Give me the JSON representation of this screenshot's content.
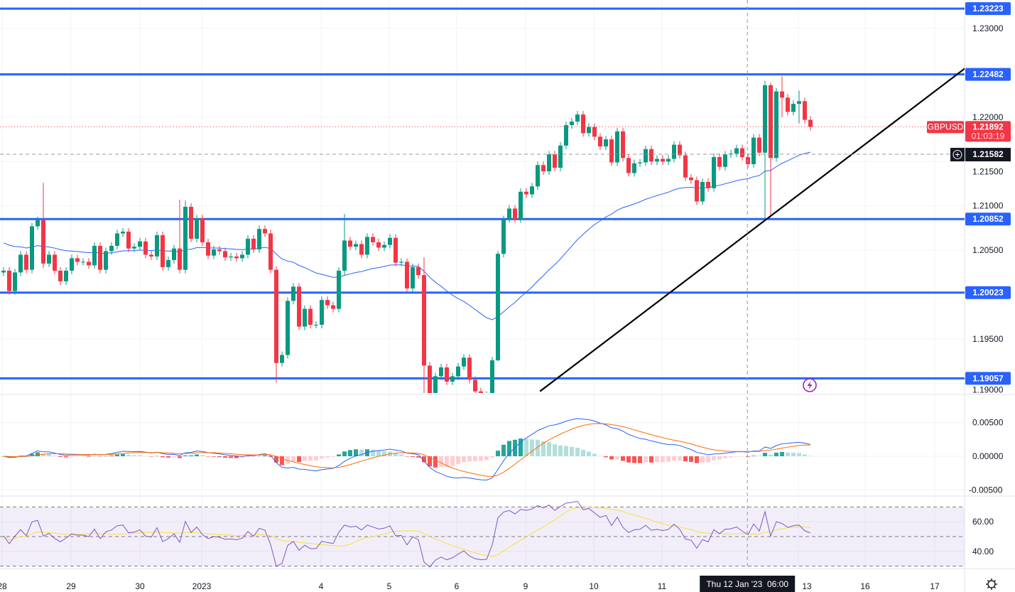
{
  "chart_data": {
    "type": "candlestick",
    "symbol": "GBPUSD",
    "interval_hint": "2h candles",
    "price_axis": {
      "min": 1.1889,
      "max": 1.233,
      "ticks": [
        "1.23000",
        "1.22000",
        "1.21500",
        "1.21000",
        "1.20500",
        "1.19500",
        "1.19000"
      ]
    },
    "time_axis": {
      "ticks": [
        "28",
        "29",
        "30",
        "2023",
        "4",
        "5",
        "6",
        "9",
        "10",
        "11",
        "13",
        "16",
        "17"
      ]
    },
    "crosshair": {
      "time_label": "Thu 12 Jan '23  06:00",
      "price_label": "1.21582",
      "price": 1.21582,
      "index": 130.9
    },
    "last_price": {
      "symbol_tag": "GBPUSD",
      "price_label": "1.21892",
      "price": 1.21892,
      "countdown": "01:03:19"
    },
    "horizontal_levels": [
      {
        "price": 1.23223,
        "label": "1.23223"
      },
      {
        "price": 1.22482,
        "label": "1.22482"
      },
      {
        "price": 1.20852,
        "label": "1.20852"
      },
      {
        "price": 1.20023,
        "label": "1.20023"
      },
      {
        "price": 1.19057,
        "label": "1.19057"
      }
    ],
    "trendline": {
      "from": {
        "index": 94.4,
        "price": 1.1891
      },
      "to": {
        "index": 169.4,
        "price": 1.2256
      }
    },
    "first_open": 1.2025,
    "close": [
      1.2027,
      1.2004,
      1.2025,
      1.2045,
      1.2028,
      1.2077,
      1.2084,
      1.2035,
      1.2045,
      1.2027,
      1.2015,
      1.2027,
      1.2041,
      1.2037,
      1.2037,
      1.2033,
      1.2055,
      1.2028,
      1.2049,
      1.2055,
      1.2069,
      1.2071,
      1.2052,
      1.2054,
      1.206,
      1.2045,
      1.2043,
      1.2067,
      1.2031,
      1.2039,
      1.2052,
      1.2028,
      1.2099,
      1.2063,
      1.2086,
      1.2059,
      1.2044,
      1.2051,
      1.2049,
      1.2042,
      1.2043,
      1.2041,
      1.2045,
      1.2063,
      1.2051,
      1.2074,
      1.2069,
      1.2028,
      1.1923,
      1.1932,
      1.1993,
      1.2009,
      1.1964,
      1.1984,
      1.1966,
      1.1966,
      1.1994,
      1.1988,
      1.1984,
      1.2027,
      1.2061,
      1.2054,
      1.2057,
      1.2045,
      1.2065,
      1.2059,
      1.2053,
      1.2056,
      1.2064,
      1.2036,
      1.2037,
      1.2007,
      1.2031,
      1.2022,
      1.192,
      1.1886,
      1.1908,
      1.1918,
      1.1902,
      1.1908,
      1.1919,
      1.1929,
      1.1904,
      1.1891,
      1.1886,
      1.1887,
      1.1926,
      1.2046,
      1.2085,
      1.2097,
      1.2085,
      1.2116,
      1.2113,
      1.2122,
      1.2146,
      1.2139,
      1.2158,
      1.2143,
      1.2168,
      1.2191,
      1.2195,
      1.2203,
      1.2182,
      1.2189,
      1.2178,
      1.2167,
      1.2175,
      1.2149,
      1.2184,
      1.2154,
      1.2137,
      1.2148,
      1.2149,
      1.2164,
      1.215,
      1.2153,
      1.215,
      1.2153,
      1.2169,
      1.2157,
      1.2132,
      1.2129,
      1.2105,
      1.2127,
      1.212,
      1.2155,
      1.2144,
      1.2158,
      1.2159,
      1.2165,
      1.2155,
      1.2147,
      1.2177,
      1.216,
      1.2236,
      1.2154,
      1.2229,
      1.2222,
      1.2206,
      1.2215,
      1.2218,
      1.2197,
      1.2189
    ],
    "wick_overrides": {
      "7": [
        1.2126,
        1.203
      ],
      "31": [
        1.2107,
        1.2024
      ],
      "32": [
        1.2106,
        1.2024
      ],
      "48": [
        1.2032,
        1.1901
      ],
      "60": [
        1.2091,
        1.2022
      ],
      "74": [
        1.2042,
        1.1889
      ],
      "87": [
        1.2049,
        1.1925
      ],
      "134": [
        1.2241,
        1.2085
      ],
      "135": [
        1.2239,
        1.2088
      ],
      "137": [
        1.2246,
        1.22
      ],
      "140": [
        1.223,
        1.2193
      ]
    },
    "moving_average": {
      "type": "EMA",
      "period": 40,
      "seed": 1.206,
      "color": "#2962ff"
    },
    "macd": {
      "fast": 12,
      "slow": 26,
      "signal": 9,
      "ticks": [
        "0.00500",
        "0.00000",
        "-0.00500"
      ],
      "macd_color": "#2962ff",
      "signal_color": "#ff6d00"
    },
    "rsi": {
      "period": 14,
      "signal": 14,
      "ticks": [
        "60.00",
        "40.00"
      ],
      "bands": [
        70,
        50,
        30
      ],
      "line_color": "#7e57c2",
      "signal_color": "#f5e13b"
    },
    "colors": {
      "up": "#089981",
      "down": "#f23645",
      "level": "#2962ff"
    }
  }
}
